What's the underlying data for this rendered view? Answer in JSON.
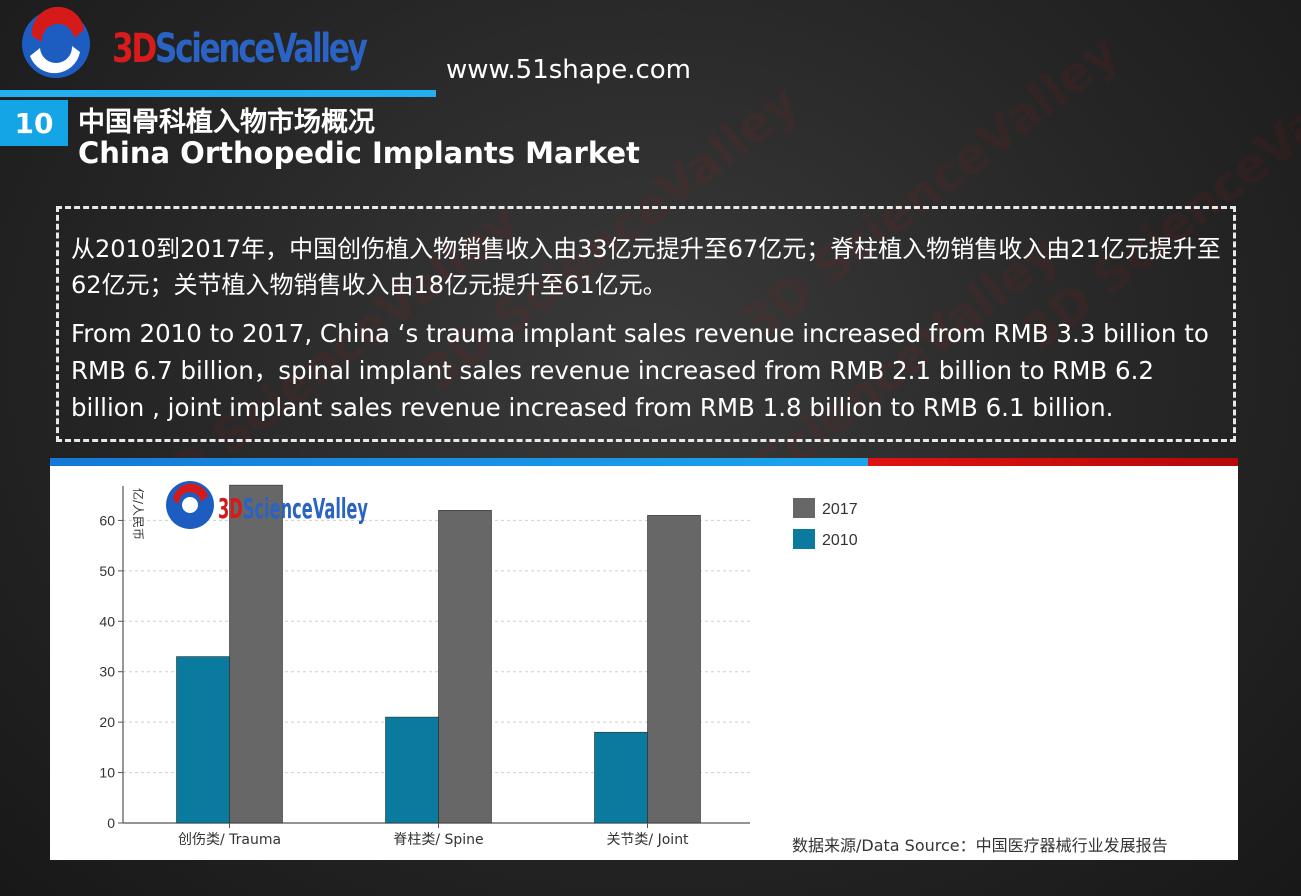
{
  "header": {
    "logo_left": "3D",
    "logo_right": "ScienceValley",
    "url": "www.51shape.com",
    "slide_number": "10",
    "title_zh": "中国骨科植入物市场概况",
    "title_en": "China Orthopedic Implants Market"
  },
  "description": {
    "zh": "从2010到2017年，中国创伤植入物销售收入由33亿元提升至67亿元；脊柱植入物销售收入由21亿元提升至62亿元；关节植入物销售收入由18亿元提升至61亿元。",
    "en": "From 2010 to 2017, China ‘s trauma implant sales revenue increased from RMB 3.3 billion to RMB 6.7 billion，spinal implant sales revenue increased from RMB 2.1 billion to RMB 6.2 billion , joint implant sales revenue increased from RMB 1.8 billion to RMB 6.1 billion."
  },
  "watermark": {
    "text": "3D ScienceValley"
  },
  "chart_data": {
    "type": "bar",
    "categories": [
      "创伤类/ Trauma",
      "脊柱类/ Spine",
      "关节类/ Joint"
    ],
    "series": [
      {
        "name": "2010",
        "values": [
          33,
          21,
          18
        ],
        "color": "#0a7b9e"
      },
      {
        "name": "2017",
        "values": [
          67,
          62,
          61
        ],
        "color": "#676767"
      }
    ],
    "ylabel": "亿/人民币",
    "ylim": [
      0,
      70
    ],
    "yticks": [
      0,
      10,
      20,
      30,
      40,
      50,
      60
    ],
    "grid": true,
    "legend_position": "top-right",
    "chart_logo": {
      "left": "3D",
      "right": "ScienceValley"
    }
  },
  "source": "数据来源/Data Source：中国医疗器械行业发展报告"
}
